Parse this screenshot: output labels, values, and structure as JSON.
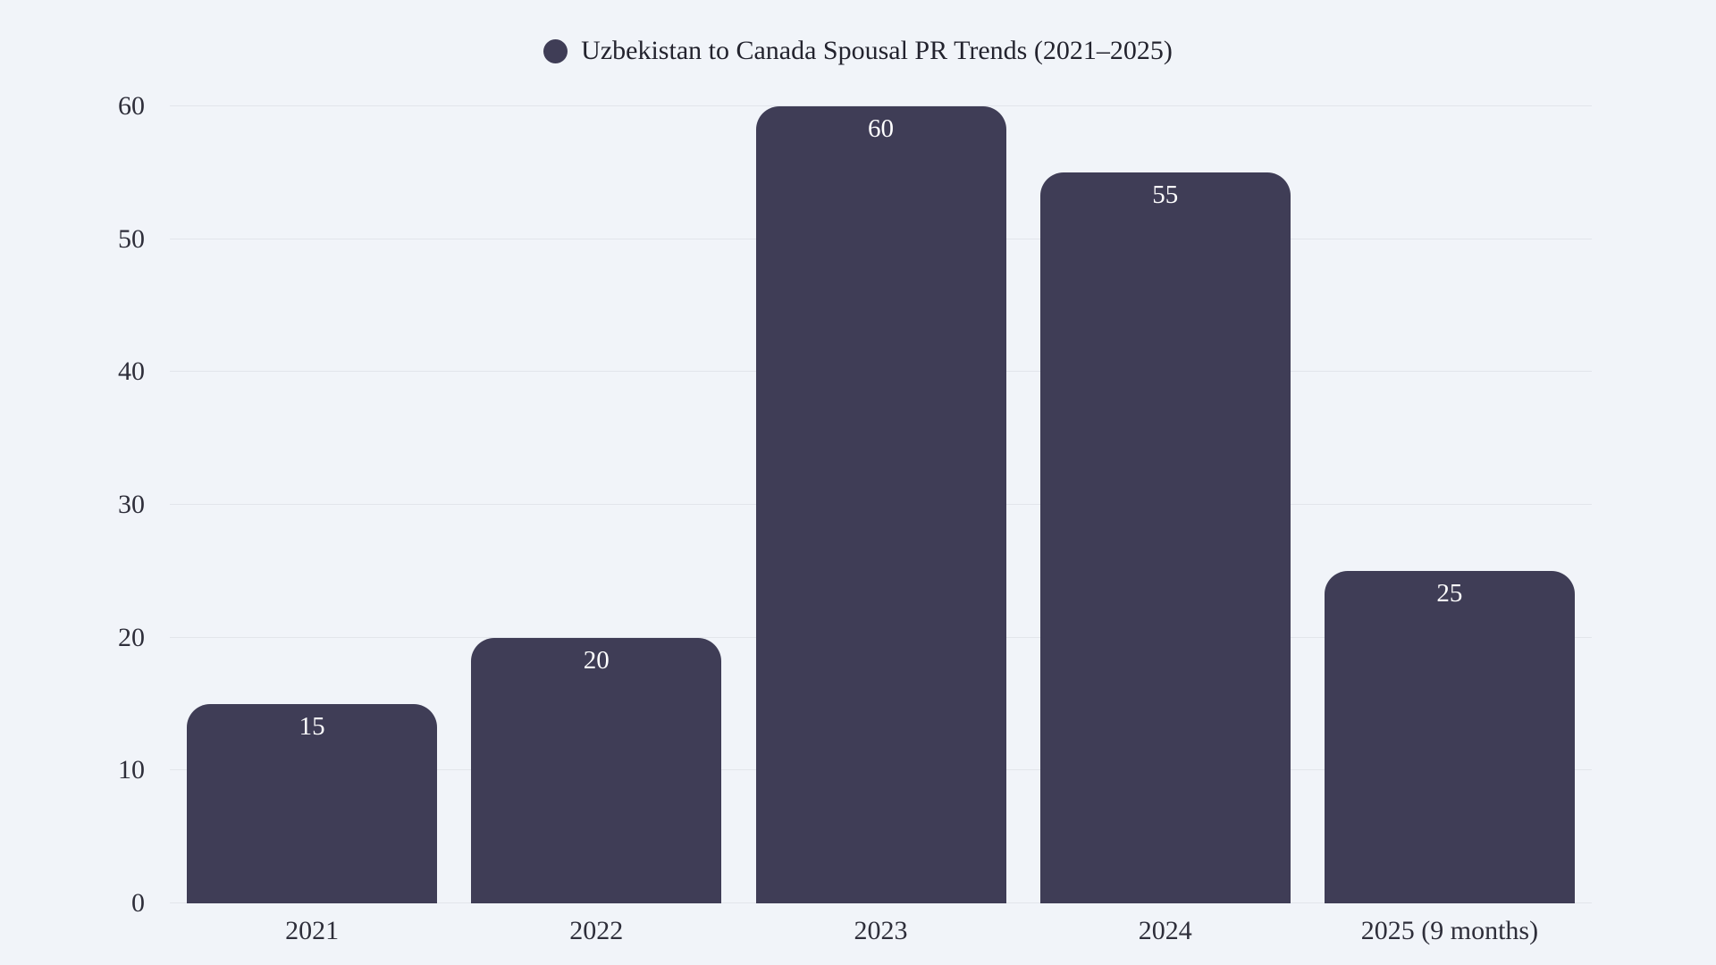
{
  "page": {
    "background_color": "#f1f4f9"
  },
  "legend": {
    "marker_color": "#3f3d56",
    "label": "Uzbekistan to Canada Spousal PR Trends (2021–2025)"
  },
  "chart_data": {
    "type": "bar",
    "title": "Uzbekistan to Canada Spousal PR Trends (2021–2025)",
    "categories": [
      "2021",
      "2022",
      "2023",
      "2024",
      "2025 (9 months)"
    ],
    "values": [
      15,
      20,
      60,
      55,
      25
    ],
    "xlabel": "",
    "ylabel": "",
    "ylim": [
      0,
      60
    ],
    "yticks": [
      0,
      10,
      20,
      30,
      40,
      50,
      60
    ],
    "bar_color": "#3f3d56",
    "value_label_color": "#ffffff",
    "gridline_color": "#e2e5eb",
    "grid": true,
    "legend_position": "top-center"
  }
}
